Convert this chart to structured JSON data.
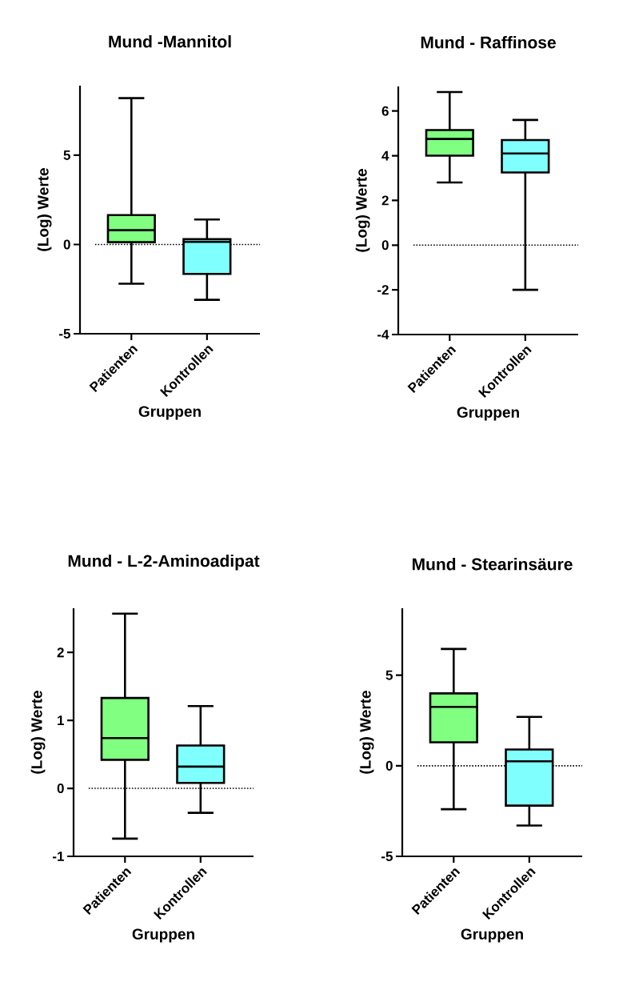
{
  "chart_data": [
    {
      "type": "box",
      "title": "Mund -Mannitol",
      "xlabel": "Gruppen",
      "ylabel": "(Log) Werte",
      "categories": [
        "Patienten",
        "Kontrollen"
      ],
      "colors": [
        "#80ff80",
        "#80ffff"
      ],
      "boxes": [
        {
          "low": -2.2,
          "q1": 0.13,
          "median": 0.8,
          "q3": 1.65,
          "high": 8.2
        },
        {
          "low": -3.1,
          "q1": -1.65,
          "median": 0.15,
          "q3": 0.3,
          "high": 1.4
        }
      ],
      "ylim": [
        -5,
        8.9
      ],
      "yticks": [
        -5,
        0,
        5
      ],
      "ref_lines": [
        {
          "axis": "y",
          "value": 0,
          "line_style": "dotted"
        }
      ]
    },
    {
      "type": "box",
      "title": "Mund - Raffinose",
      "xlabel": "Gruppen",
      "ylabel": "(Log) Werte",
      "categories": [
        "Patienten",
        "Kontrollen"
      ],
      "colors": [
        "#80ff80",
        "#80ffff"
      ],
      "boxes": [
        {
          "low": 2.8,
          "q1": 4.0,
          "median": 4.75,
          "q3": 5.15,
          "high": 6.85
        },
        {
          "low": -2.0,
          "q1": 3.25,
          "median": 4.1,
          "q3": 4.7,
          "high": 5.6
        }
      ],
      "ylim": [
        -4,
        7.1
      ],
      "yticks": [
        -4,
        -2,
        0,
        2,
        4,
        6
      ],
      "ref_lines": [
        {
          "axis": "y",
          "value": 0,
          "line_style": "dotted"
        }
      ]
    },
    {
      "type": "box",
      "title": "Mund - L-2-Aminoadipat",
      "xlabel": "Gruppen",
      "ylabel": "(Log) Werte",
      "categories": [
        "Patienten",
        "Kontrollen"
      ],
      "colors": [
        "#80ff80",
        "#80ffff"
      ],
      "boxes": [
        {
          "low": -0.74,
          "q1": 0.42,
          "median": 0.74,
          "q3": 1.33,
          "high": 2.57
        },
        {
          "low": -0.36,
          "q1": 0.08,
          "median": 0.32,
          "q3": 0.63,
          "high": 1.21
        }
      ],
      "ylim": [
        -1,
        2.65
      ],
      "yticks": [
        -1,
        0,
        1,
        2
      ],
      "ref_lines": [
        {
          "axis": "y",
          "value": 0,
          "line_style": "dotted"
        }
      ]
    },
    {
      "type": "box",
      "title": "Mund - Stearinsäure",
      "xlabel": "Gruppen",
      "ylabel": "(Log) Werte",
      "categories": [
        "Patienten",
        "Kontrollen"
      ],
      "colors": [
        "#80ff80",
        "#80ffff"
      ],
      "boxes": [
        {
          "low": -2.4,
          "q1": 1.3,
          "median": 3.25,
          "q3": 4.0,
          "high": 6.45
        },
        {
          "low": -3.3,
          "q1": -2.2,
          "median": 0.25,
          "q3": 0.9,
          "high": 2.7
        }
      ],
      "ylim": [
        -5,
        8.7
      ],
      "yticks": [
        -5,
        0,
        5
      ],
      "ref_lines": [
        {
          "axis": "y",
          "value": 0,
          "line_style": "dotted"
        }
      ]
    }
  ]
}
